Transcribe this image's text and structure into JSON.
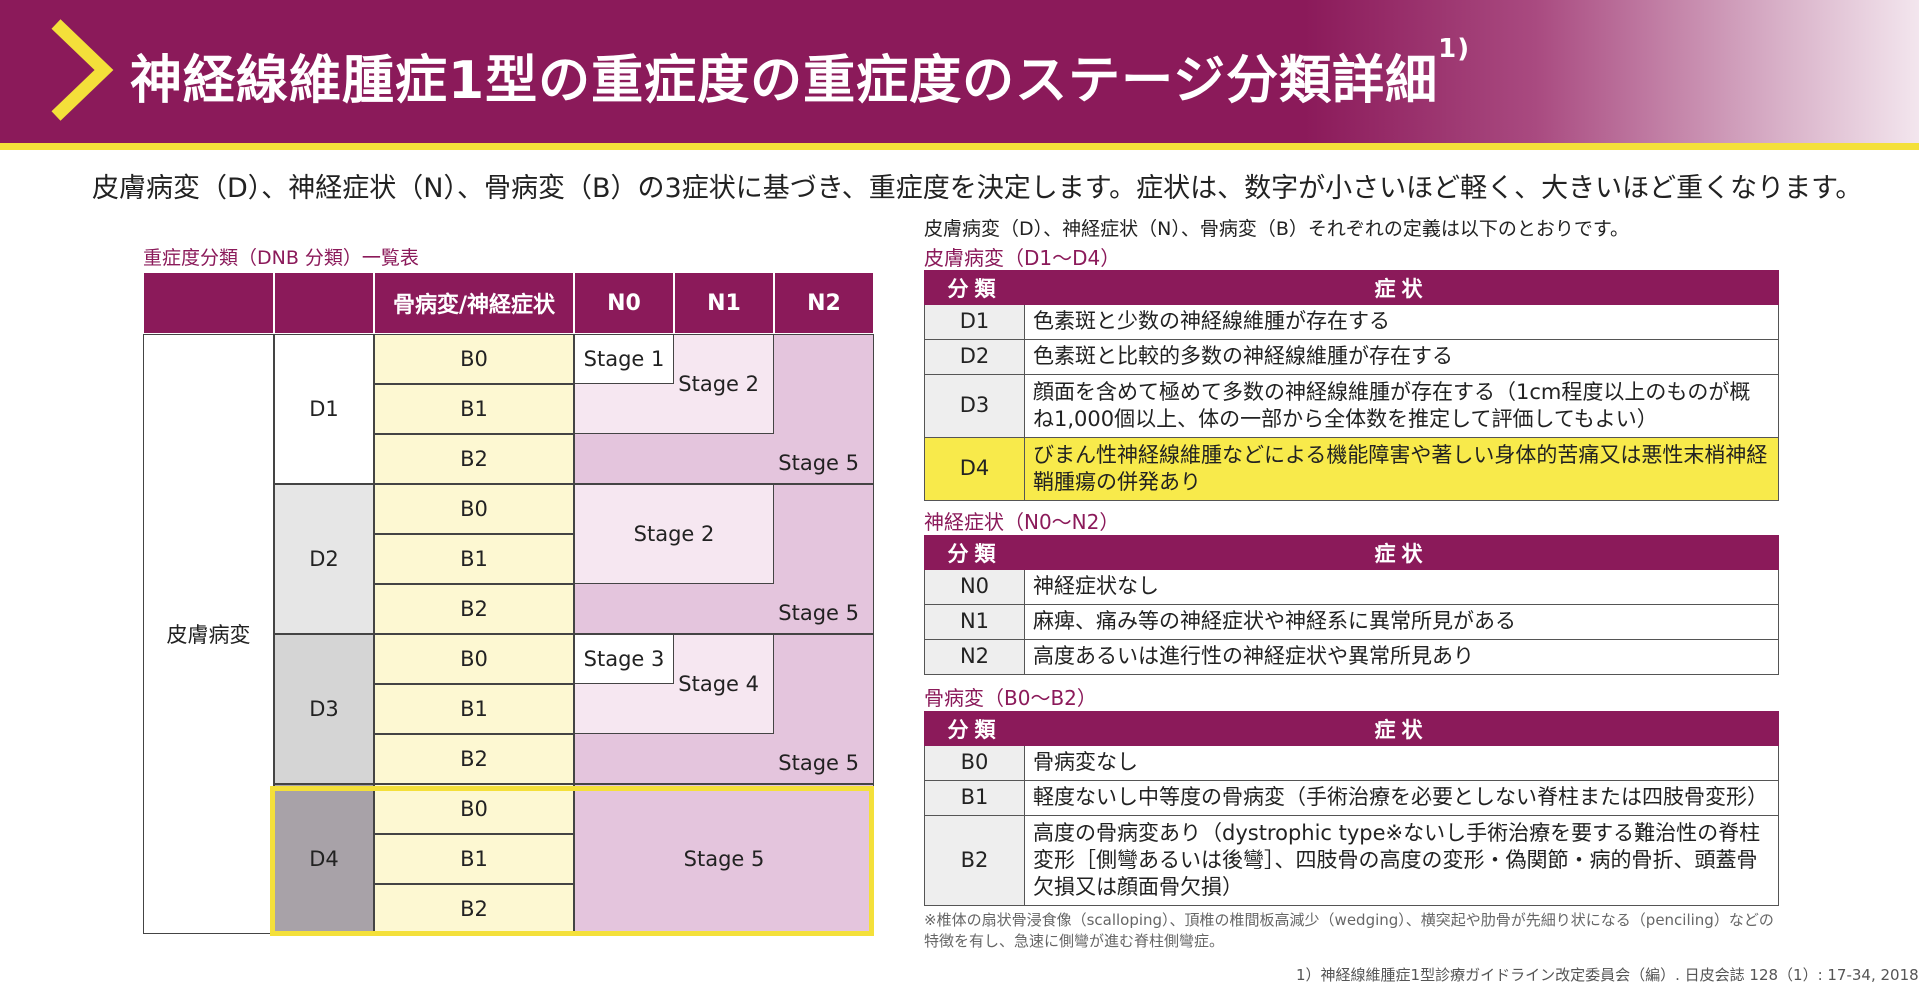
{
  "header": {
    "title": "神経線維腫症1型の重症度の重症度のステージ分類詳細",
    "title_sup": "1)",
    "colors": {
      "primary": "#8b1a5a",
      "accent": "#f4e03a"
    }
  },
  "lead": "皮膚病変（D）、神経症状（N）、骨病変（B）の3症状に基づき、重症度を決定します。症状は、数字が小さいほど軽く、大きいほど重くなります。",
  "left_table": {
    "caption": "重症度分類（DNB 分類）一覧表",
    "header": {
      "bone_neuro": "骨病変/神経症状",
      "n0": "N0",
      "n1": "N1",
      "n2": "N2"
    },
    "skin_label": "皮膚病変",
    "d_labels": [
      "D1",
      "D2",
      "D3",
      "D4"
    ],
    "b_labels": [
      "B0",
      "B1",
      "B2",
      "B0",
      "B1",
      "B2",
      "B0",
      "B1",
      "B2",
      "B0",
      "B1",
      "B2"
    ],
    "stages": {
      "d1_stage1": "Stage 1",
      "d1_stage2": "Stage 2",
      "d1_stage5": "Stage 5",
      "d2_stage2": "Stage 2",
      "d2_stage5": "Stage 5",
      "d3_stage3": "Stage 3",
      "d3_stage4": "Stage 4",
      "d3_stage5": "Stage 5",
      "d4_stage5": "Stage 5"
    }
  },
  "right": {
    "intro": "皮膚病変（D）、神経症状（N）、骨病変（B）それぞれの定義は以下のとおりです。",
    "skin": {
      "caption": "皮膚病変（D1〜D4）",
      "head_key": "分類",
      "head_val": "症状",
      "rows": [
        {
          "key": "D1",
          "text": "色素斑と少数の神経線維腫が存在する"
        },
        {
          "key": "D2",
          "text": "色素斑と比較的多数の神経線維腫が存在する"
        },
        {
          "key": "D3",
          "text": "顔面を含めて極めて多数の神経線維腫が存在する（1cm程度以上のものが概ね1,000個以上、体の一部から全体数を推定して評価してもよい）"
        },
        {
          "key": "D4",
          "text": "びまん性神経線維腫などによる機能障害や著しい身体的苦痛又は悪性末梢神経鞘腫瘍の併発あり"
        }
      ]
    },
    "neuro": {
      "caption": "神経症状（N0〜N2）",
      "head_key": "分類",
      "head_val": "症状",
      "rows": [
        {
          "key": "N0",
          "text": "神経症状なし"
        },
        {
          "key": "N1",
          "text": "麻痺、痛み等の神経症状や神経系に異常所見がある"
        },
        {
          "key": "N2",
          "text": "高度あるいは進行性の神経症状や異常所見あり"
        }
      ]
    },
    "bone": {
      "caption": "骨病変（B0〜B2）",
      "head_key": "分類",
      "head_val": "症状",
      "rows": [
        {
          "key": "B0",
          "text": "骨病変なし"
        },
        {
          "key": "B1",
          "text": "軽度ないし中等度の骨病変（手術治療を必要としない脊柱または四肢骨変形）"
        },
        {
          "key": "B2",
          "text": "高度の骨病変あり（dystrophic type※ないし手術治療を要する難治性の脊柱変形［側彎あるいは後彎］、四肢骨の高度の変形・偽関節・病的骨折、頭蓋骨欠損又は顔面骨欠損）"
        }
      ]
    },
    "note": "※椎体の扇状骨浸食像（scalloping）、頂椎の椎間板高減少（wedging）、横突起や肋骨が先細り状になる（penciling）などの特徴を有し、急速に側彎が進む脊柱側彎症。",
    "reference": "1）神経線維腫症1型診療ガイドライン改定委員会（編）. 日皮会誌 128（1）: 17-34, 2018"
  }
}
